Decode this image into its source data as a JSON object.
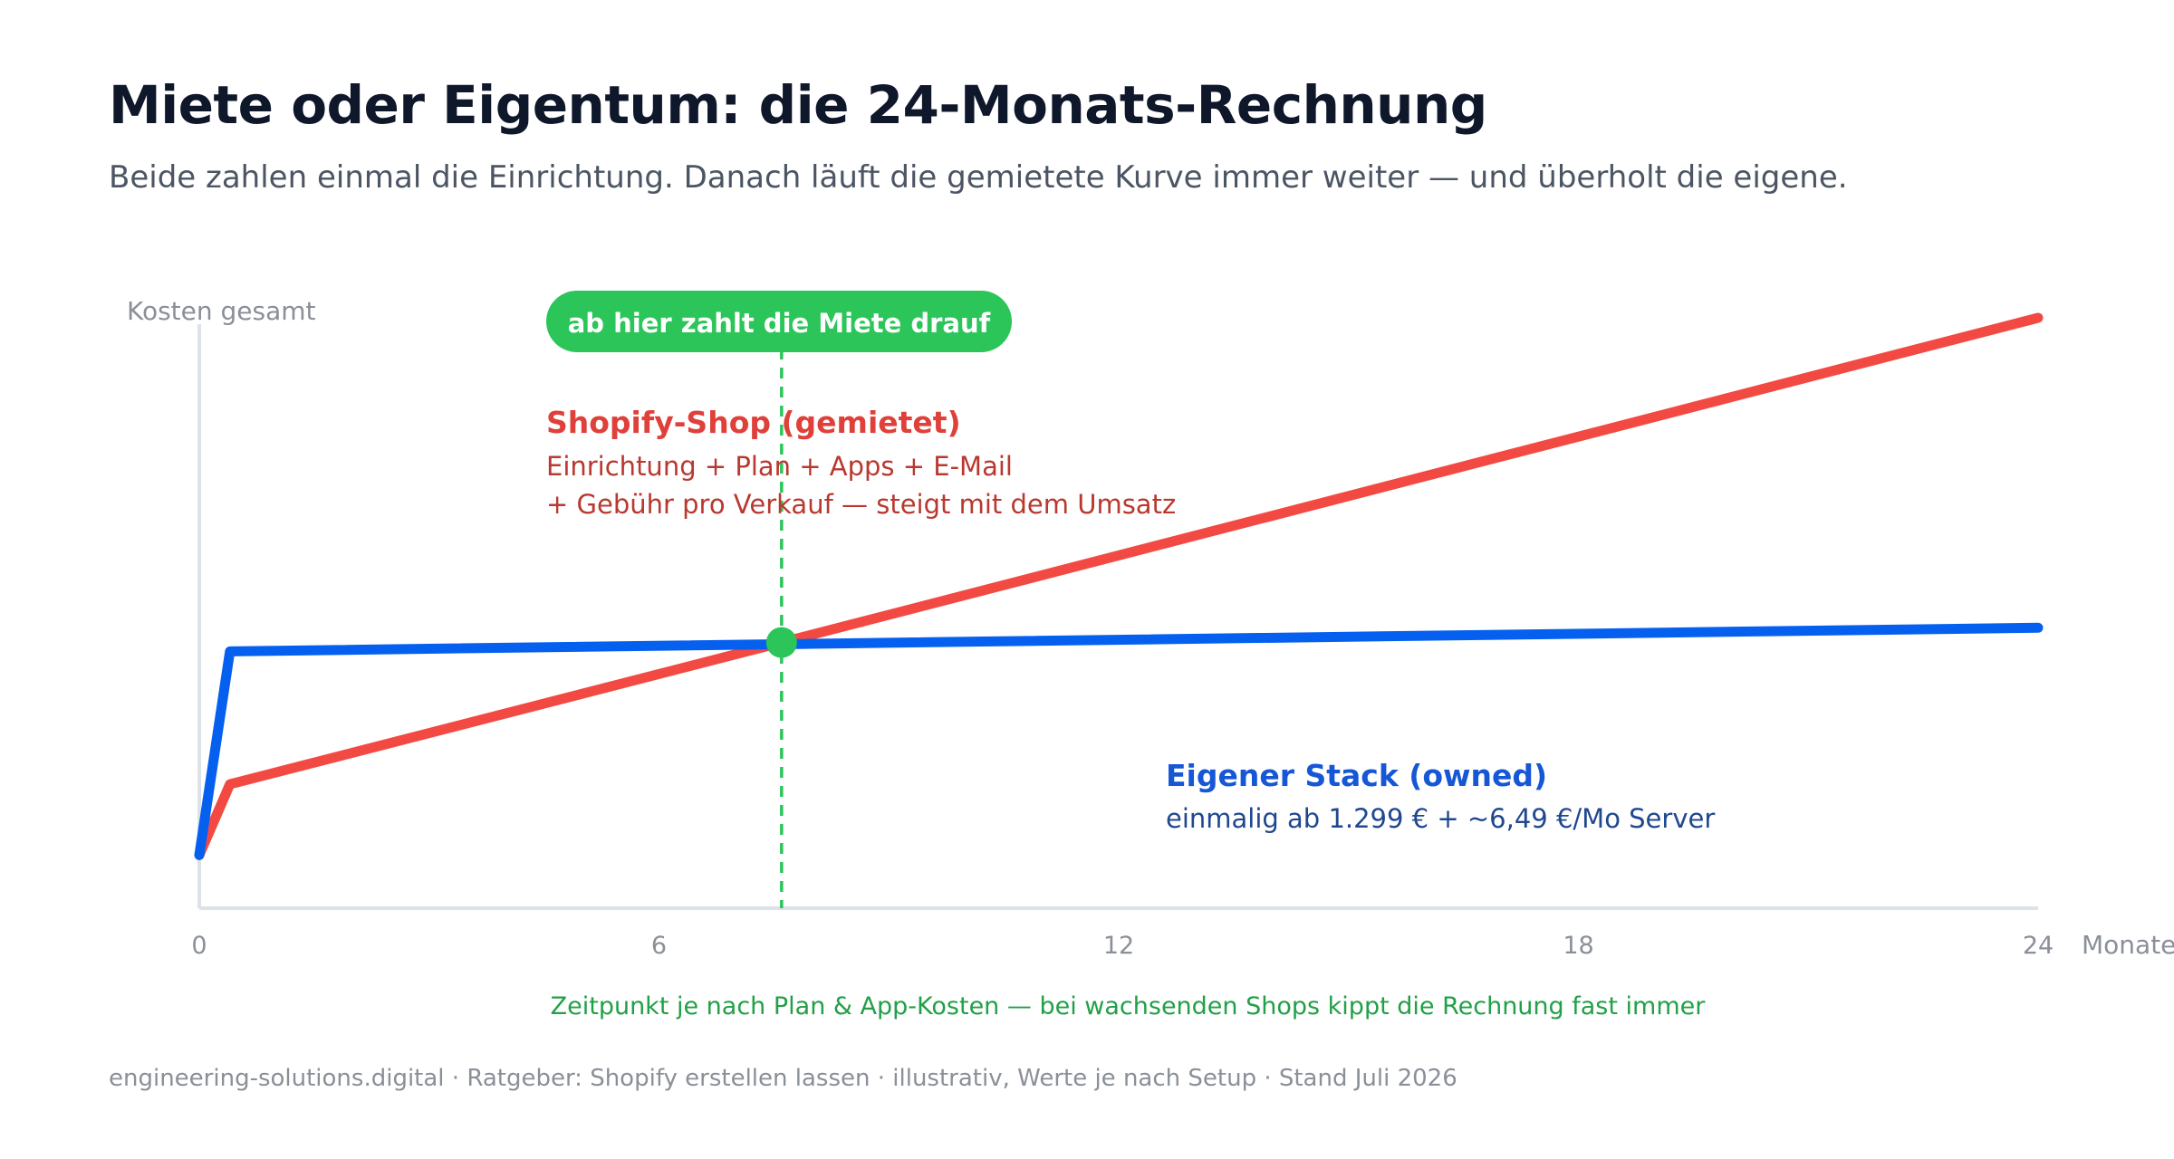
{
  "header": {
    "title": "Miete oder Eigentum: die 24-Monats-Rechnung",
    "subtitle": "Beide zahlen einmal die Einrichtung. Danach läuft die gemietete Kurve immer weiter — und überholt die eigene."
  },
  "footer": {
    "text": "engineering-solutions.digital · Ratgeber: Shopify erstellen lassen · illustrativ, Werte je nach Setup · Stand Juli 2026"
  },
  "chart_data": {
    "type": "line",
    "ylabel": "Kosten gesamt",
    "xlabel": "Monate",
    "xlim": [
      0,
      24
    ],
    "x_ticks": [
      "0",
      "6",
      "12",
      "18",
      "24"
    ],
    "ylim": [
      0,
      100
    ],
    "y_ticks_shown": false,
    "grid": false,
    "series": [
      {
        "name": "Shopify-Shop (gemietet)",
        "description_lines": [
          "Einrichtung + Plan + Apps + E-Mail",
          "+ Gebühr pro Verkauf — steigt mit dem Umsatz"
        ],
        "color": "#f24a43",
        "points": [
          [
            0,
            9
          ],
          [
            0.4,
            21
          ],
          [
            7.6,
            45
          ],
          [
            24,
            100
          ]
        ]
      },
      {
        "name": "Eigener Stack (owned)",
        "description_lines": [
          "einmalig ab 1.299 € + ~6,49 €/Mo Server"
        ],
        "color": "#0560ef",
        "points": [
          [
            0,
            9
          ],
          [
            0.4,
            43.5
          ],
          [
            24,
            47.5
          ]
        ]
      }
    ],
    "breakeven": {
      "x": 7.6,
      "y": 45,
      "label": "ab hier zahlt die Miete drauf",
      "note": "Zeitpunkt je nach Plan & App-Kosten — bei wachsenden Shops kippt die Rechnung fast immer",
      "color": "#2cc55a"
    },
    "colors": {
      "axis": "#dde1e8",
      "tick_label": "#8a8f98",
      "rented_text": "#e0403a",
      "rented_desc": "#b9382f",
      "owned_text": "#1657d6",
      "owned_desc": "#20488f",
      "note": "#22a047"
    }
  }
}
